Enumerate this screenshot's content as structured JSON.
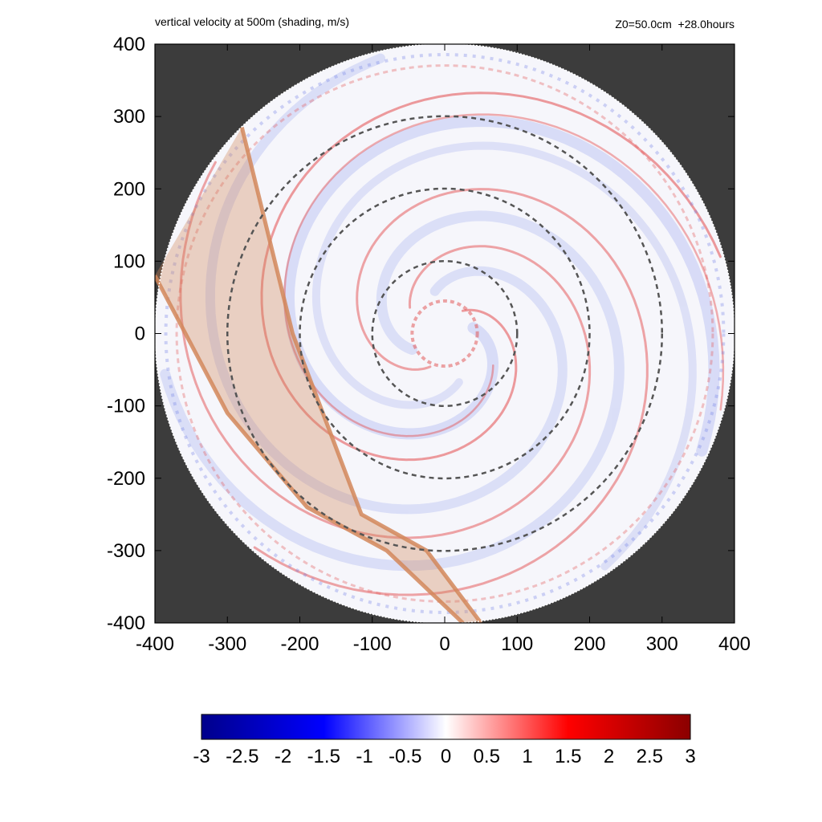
{
  "chart_data": {
    "type": "heatmap",
    "title": "vertical velocity at 500m (shading, m/s)",
    "subtitle": "Z0=50.0cm  +28.0hours",
    "xlim": [
      -400,
      400
    ],
    "ylim": [
      -400,
      400
    ],
    "x_ticks": [
      -400,
      -300,
      -200,
      -100,
      0,
      100,
      200,
      300,
      400
    ],
    "y_ticks": [
      -400,
      -300,
      -200,
      -100,
      0,
      100,
      200,
      300,
      400
    ],
    "domain_radius": 400,
    "dashed_circle_radii": [
      100,
      200,
      300
    ],
    "colorbar": {
      "min": -3,
      "max": 3,
      "ticks": [
        "-3",
        "-2.5",
        "-2",
        "-1.5",
        "-1",
        "-0.5",
        "0",
        "0.5",
        "1",
        "1.5",
        "2",
        "2.5",
        "3"
      ],
      "colors": [
        "#00008b",
        "#0000ff",
        "#ffffff",
        "#ff0000",
        "#8b0000"
      ]
    },
    "swath_band": {
      "edge1": [
        [
          -280,
          285
        ],
        [
          -210,
          0
        ],
        [
          -115,
          -250
        ],
        [
          -25,
          -300
        ],
        [
          50,
          -400
        ]
      ],
      "edge2": [
        [
          -400,
          80
        ],
        [
          -300,
          -110
        ],
        [
          -190,
          -240
        ],
        [
          -80,
          -300
        ],
        [
          25,
          -400
        ]
      ],
      "color": "#d2875a"
    },
    "outside_color": "#3c3c3c"
  }
}
